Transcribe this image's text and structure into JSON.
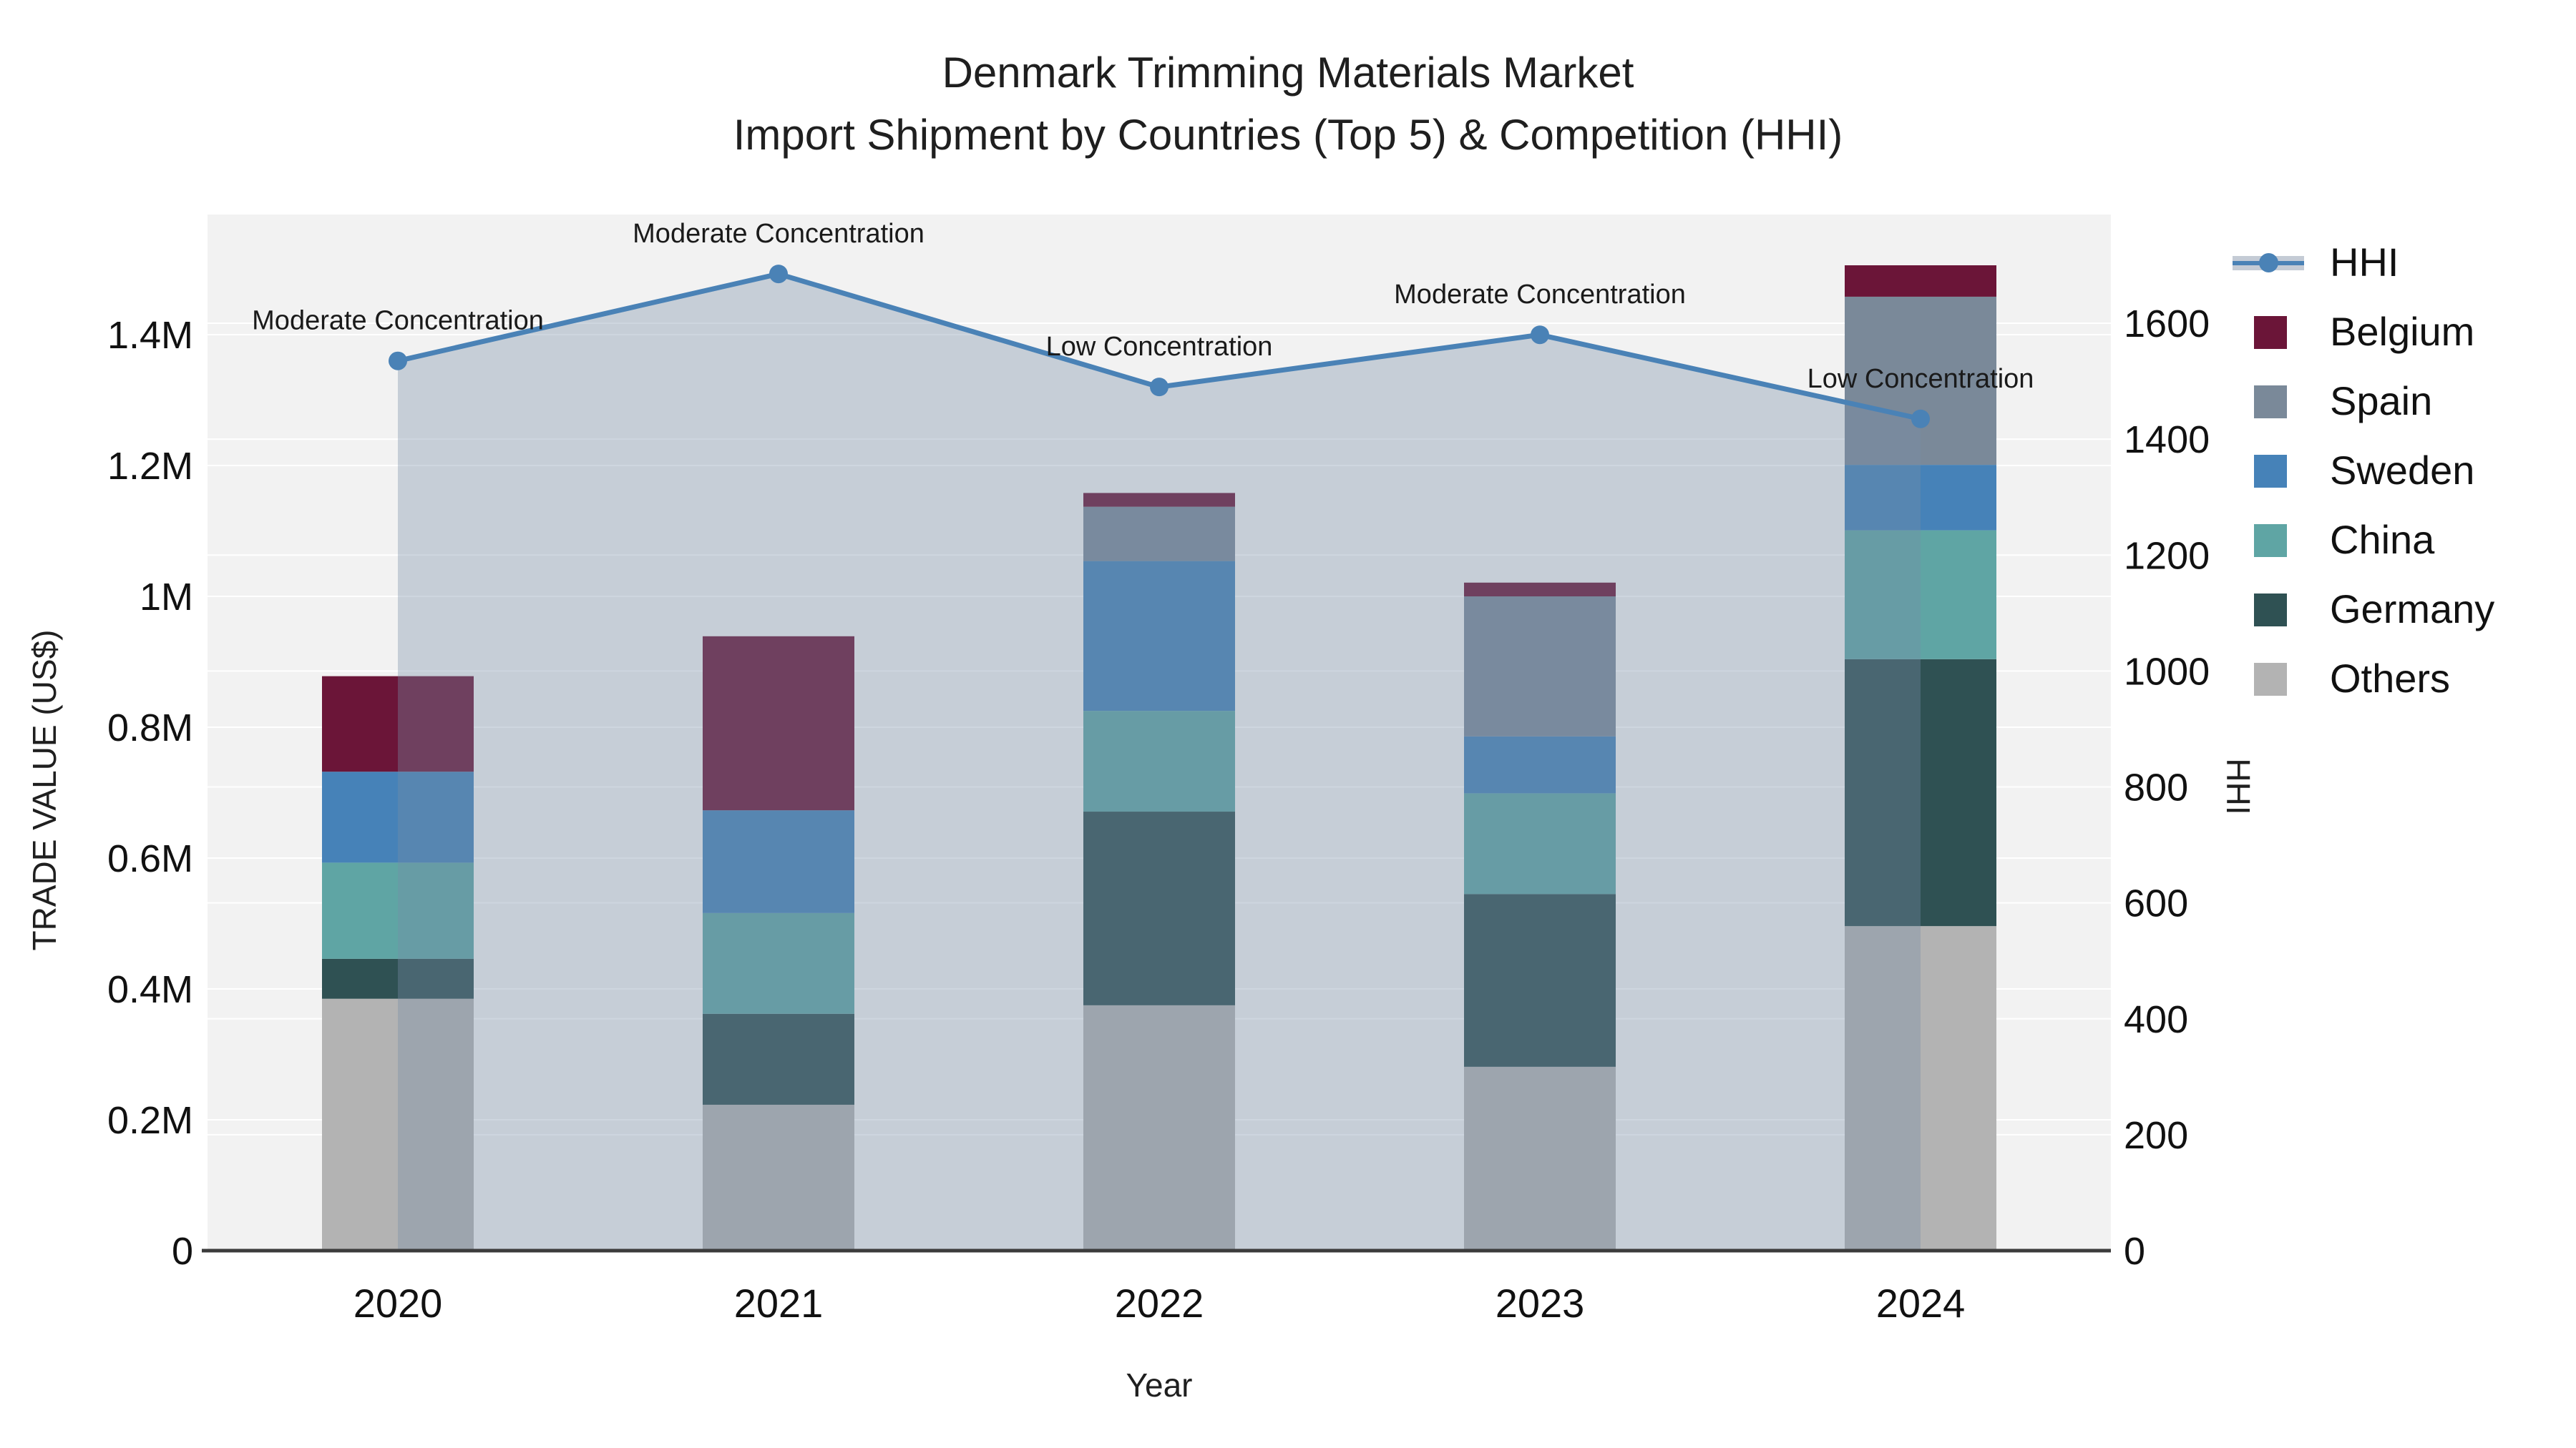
{
  "title": {
    "line1": "Denmark Trimming Materials Market",
    "line2": "Import Shipment by Countries (Top 5) & Competition (HHI)"
  },
  "axes": {
    "x": {
      "title": "Year"
    },
    "y_left": {
      "title": "TRADE VALUE (US$)",
      "tick_labels": [
        "0",
        "0.2M",
        "0.4M",
        "0.6M",
        "0.8M",
        "1M",
        "1.2M",
        "1.4M"
      ],
      "tick_values": [
        0,
        200000,
        400000,
        600000,
        800000,
        1000000,
        1200000,
        1400000
      ],
      "range": [
        0,
        1400000
      ]
    },
    "y_right": {
      "title": "HHI",
      "tick_labels": [
        "0",
        "200",
        "400",
        "600",
        "800",
        "1000",
        "1200",
        "1400",
        "1600"
      ],
      "tick_values": [
        0,
        200,
        400,
        600,
        800,
        1000,
        1200,
        1400,
        1600
      ],
      "range": [
        0,
        1600
      ]
    }
  },
  "chart_data": {
    "type": "bar+line",
    "categories": [
      "2020",
      "2021",
      "2022",
      "2023",
      "2024"
    ],
    "stack_note": "bars stacked bottom-up: Others, Germany, China, Sweden, Spain, Belgium",
    "series": [
      {
        "name": "Belgium",
        "color": "#6B1538",
        "values": [
          146000,
          266000,
          21000,
          21000,
          48000
        ]
      },
      {
        "name": "Spain",
        "color": "#7A8999",
        "values": [
          0,
          0,
          83000,
          214000,
          257000
        ]
      },
      {
        "name": "Sweden",
        "color": "#4682B8",
        "values": [
          139000,
          157000,
          229000,
          87000,
          100000
        ]
      },
      {
        "name": "China",
        "color": "#5FA5A4",
        "values": [
          147000,
          154000,
          154000,
          154000,
          197000
        ]
      },
      {
        "name": "Germany",
        "color": "#2F5153",
        "values": [
          61000,
          139000,
          296000,
          264000,
          408000
        ]
      },
      {
        "name": "Others",
        "color": "#B3B3B3",
        "values": [
          385000,
          223000,
          375000,
          281000,
          496000
        ]
      }
    ],
    "line": {
      "name": "HHI",
      "values": [
        1535,
        1685,
        1490,
        1580,
        1435
      ],
      "color": "#4A82B6",
      "fill_color": "rgba(120,140,165,0.36)",
      "annotations": [
        "Moderate Concentration",
        "Moderate Concentration",
        "Low Concentration",
        "Moderate Concentration",
        "Low Concentration"
      ]
    },
    "plot_bg": "#F2F2F2",
    "grid_color": "#FFFFFF",
    "axis_line_color": "#3C3C3C"
  },
  "legend": {
    "items": [
      {
        "label": "HHI",
        "type": "line"
      },
      {
        "label": "Belgium",
        "type": "swatch",
        "color": "#6B1538"
      },
      {
        "label": "Spain",
        "type": "swatch",
        "color": "#7A8999"
      },
      {
        "label": "Sweden",
        "type": "swatch",
        "color": "#4682B8"
      },
      {
        "label": "China",
        "type": "swatch",
        "color": "#5FA5A4"
      },
      {
        "label": "Germany",
        "type": "swatch",
        "color": "#2F5153"
      },
      {
        "label": "Others",
        "type": "swatch",
        "color": "#B3B3B3"
      }
    ]
  }
}
